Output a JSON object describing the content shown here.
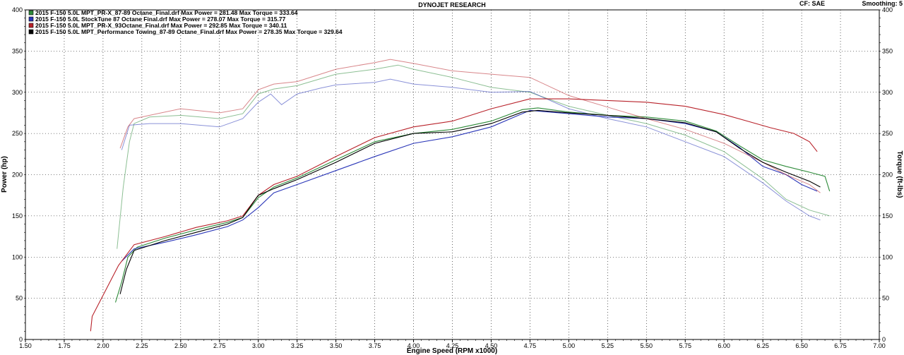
{
  "header": {
    "title": "DYNOJET RESEARCH",
    "cf_label": "CF: SAE",
    "smoothing_label": "Smoothing: 5"
  },
  "chart_data": {
    "type": "line",
    "title": "DYNOJET RESEARCH",
    "xlabel": "Engine Speed (RPM x1000)",
    "ylabel_left": "Power (hp)",
    "ylabel_right": "Torque (ft-lbs)",
    "xlim": [
      1.5,
      7.0
    ],
    "ylim": [
      0,
      400
    ],
    "xticks": [
      "1.50",
      "1.75",
      "2.00",
      "2.25",
      "2.50",
      "2.75",
      "3.00",
      "3.25",
      "3.50",
      "3.75",
      "4.00",
      "4.25",
      "4.50",
      "4.75",
      "5.00",
      "5.25",
      "5.50",
      "5.75",
      "6.00",
      "6.25",
      "6.50",
      "6.75",
      "7.00"
    ],
    "yticks": [
      "0",
      "50",
      "100",
      "150",
      "200",
      "250",
      "300",
      "350",
      "400"
    ],
    "grid": true,
    "legend_position": "top-left",
    "series": [
      {
        "name": "2015 F-150 5.0L MPT_PR-X_87-89 Octane_Final.drf Max Power = 281.48     Max Torque = 333.64",
        "color": "#2e8b3a",
        "power": [
          [
            2.08,
            45
          ],
          [
            2.12,
            70
          ],
          [
            2.16,
            100
          ],
          [
            2.22,
            112
          ],
          [
            2.4,
            123
          ],
          [
            2.6,
            133
          ],
          [
            2.8,
            142
          ],
          [
            2.9,
            148
          ],
          [
            3.0,
            172
          ],
          [
            3.1,
            185
          ],
          [
            3.25,
            196
          ],
          [
            3.5,
            218
          ],
          [
            3.75,
            240
          ],
          [
            4.0,
            250
          ],
          [
            4.25,
            255
          ],
          [
            4.5,
            265
          ],
          [
            4.7,
            279
          ],
          [
            4.8,
            281
          ],
          [
            5.0,
            276
          ],
          [
            5.25,
            272
          ],
          [
            5.5,
            270
          ],
          [
            5.75,
            265
          ],
          [
            5.95,
            253
          ],
          [
            6.1,
            235
          ],
          [
            6.25,
            218
          ],
          [
            6.4,
            210
          ],
          [
            6.55,
            203
          ],
          [
            6.65,
            198
          ],
          [
            6.68,
            180
          ]
        ],
        "torque": [
          [
            2.09,
            110
          ],
          [
            2.13,
            185
          ],
          [
            2.17,
            240
          ],
          [
            2.2,
            262
          ],
          [
            2.3,
            270
          ],
          [
            2.5,
            272
          ],
          [
            2.75,
            268
          ],
          [
            2.9,
            274
          ],
          [
            3.0,
            298
          ],
          [
            3.1,
            304
          ],
          [
            3.25,
            308
          ],
          [
            3.5,
            322
          ],
          [
            3.75,
            328
          ],
          [
            3.9,
            333
          ],
          [
            4.0,
            328
          ],
          [
            4.25,
            318
          ],
          [
            4.5,
            306
          ],
          [
            4.75,
            300
          ],
          [
            5.0,
            283
          ],
          [
            5.25,
            272
          ],
          [
            5.5,
            262
          ],
          [
            5.75,
            248
          ],
          [
            6.0,
            228
          ],
          [
            6.25,
            195
          ],
          [
            6.4,
            170
          ],
          [
            6.55,
            157
          ],
          [
            6.68,
            150
          ]
        ]
      },
      {
        "name": "2015 F-150 5.0L StockTune 87 Octane Final.drf Max Power = 278.07     Max Torque = 315.77",
        "color": "#2a36b8",
        "power": [
          [
            2.12,
            95
          ],
          [
            2.2,
            110
          ],
          [
            2.4,
            118
          ],
          [
            2.6,
            127
          ],
          [
            2.8,
            137
          ],
          [
            2.9,
            145
          ],
          [
            3.0,
            160
          ],
          [
            3.1,
            178
          ],
          [
            3.25,
            188
          ],
          [
            3.5,
            205
          ],
          [
            3.75,
            222
          ],
          [
            4.0,
            238
          ],
          [
            4.25,
            246
          ],
          [
            4.5,
            258
          ],
          [
            4.65,
            270
          ],
          [
            4.75,
            278
          ],
          [
            5.0,
            274
          ],
          [
            5.25,
            270
          ],
          [
            5.5,
            268
          ],
          [
            5.75,
            262
          ],
          [
            5.95,
            252
          ],
          [
            6.1,
            233
          ],
          [
            6.25,
            210
          ],
          [
            6.4,
            200
          ],
          [
            6.5,
            188
          ],
          [
            6.6,
            180
          ]
        ],
        "torque": [
          [
            2.12,
            230
          ],
          [
            2.17,
            260
          ],
          [
            2.3,
            262
          ],
          [
            2.5,
            262
          ],
          [
            2.75,
            258
          ],
          [
            2.9,
            268
          ],
          [
            3.0,
            288
          ],
          [
            3.08,
            298
          ],
          [
            3.15,
            285
          ],
          [
            3.25,
            298
          ],
          [
            3.4,
            305
          ],
          [
            3.5,
            309
          ],
          [
            3.75,
            312
          ],
          [
            3.85,
            316
          ],
          [
            4.0,
            310
          ],
          [
            4.25,
            306
          ],
          [
            4.5,
            300
          ],
          [
            4.75,
            301
          ],
          [
            5.0,
            280
          ],
          [
            5.25,
            268
          ],
          [
            5.5,
            258
          ],
          [
            5.75,
            240
          ],
          [
            6.0,
            222
          ],
          [
            6.25,
            190
          ],
          [
            6.4,
            168
          ],
          [
            6.55,
            150
          ],
          [
            6.62,
            145
          ]
        ]
      },
      {
        "name": "2015 F-150 5.0L MPT_PR-X_93Octane_Final.drf Max Power = 292.85     Max Torque = 340.11",
        "color": "#b8222a",
        "power": [
          [
            1.92,
            10
          ],
          [
            1.93,
            28
          ],
          [
            2.1,
            90
          ],
          [
            2.2,
            115
          ],
          [
            2.4,
            125
          ],
          [
            2.6,
            136
          ],
          [
            2.8,
            144
          ],
          [
            2.9,
            150
          ],
          [
            3.0,
            175
          ],
          [
            3.1,
            188
          ],
          [
            3.25,
            198
          ],
          [
            3.5,
            222
          ],
          [
            3.75,
            245
          ],
          [
            4.0,
            258
          ],
          [
            4.25,
            265
          ],
          [
            4.5,
            280
          ],
          [
            4.75,
            292
          ],
          [
            5.0,
            292
          ],
          [
            5.25,
            290
          ],
          [
            5.5,
            288
          ],
          [
            5.75,
            283
          ],
          [
            6.0,
            273
          ],
          [
            6.15,
            265
          ],
          [
            6.3,
            257
          ],
          [
            6.45,
            250
          ],
          [
            6.55,
            240
          ],
          [
            6.6,
            228
          ]
        ],
        "torque": [
          [
            2.11,
            232
          ],
          [
            2.16,
            258
          ],
          [
            2.2,
            268
          ],
          [
            2.3,
            272
          ],
          [
            2.5,
            280
          ],
          [
            2.75,
            275
          ],
          [
            2.9,
            280
          ],
          [
            3.0,
            303
          ],
          [
            3.1,
            310
          ],
          [
            3.25,
            313
          ],
          [
            3.5,
            328
          ],
          [
            3.75,
            336
          ],
          [
            3.85,
            340
          ],
          [
            4.0,
            335
          ],
          [
            4.25,
            326
          ],
          [
            4.5,
            322
          ],
          [
            4.75,
            318
          ],
          [
            5.0,
            296
          ],
          [
            5.25,
            282
          ],
          [
            5.5,
            268
          ],
          [
            5.75,
            255
          ],
          [
            6.0,
            238
          ],
          [
            6.25,
            215
          ],
          [
            6.4,
            200
          ],
          [
            6.55,
            188
          ],
          [
            6.62,
            178
          ]
        ]
      },
      {
        "name": "2015 F-150 5.0L MPT_Performance Towing_87-89 Octane_Final.drf Max Power = 278.35     Max Torque = 329.64",
        "color": "#000000",
        "power": [
          [
            2.11,
            55
          ],
          [
            2.15,
            85
          ],
          [
            2.2,
            108
          ],
          [
            2.4,
            120
          ],
          [
            2.6,
            130
          ],
          [
            2.8,
            140
          ],
          [
            2.9,
            148
          ],
          [
            3.0,
            175
          ],
          [
            3.1,
            183
          ],
          [
            3.25,
            194
          ],
          [
            3.5,
            215
          ],
          [
            3.75,
            238
          ],
          [
            4.0,
            250
          ],
          [
            4.25,
            252
          ],
          [
            4.5,
            262
          ],
          [
            4.7,
            276
          ],
          [
            4.8,
            278
          ],
          [
            5.0,
            275
          ],
          [
            5.25,
            272
          ],
          [
            5.5,
            268
          ],
          [
            5.75,
            263
          ],
          [
            5.95,
            252
          ],
          [
            6.1,
            232
          ],
          [
            6.25,
            215
          ],
          [
            6.4,
            203
          ],
          [
            6.55,
            192
          ],
          [
            6.62,
            185
          ]
        ],
        "torque": []
      }
    ]
  }
}
